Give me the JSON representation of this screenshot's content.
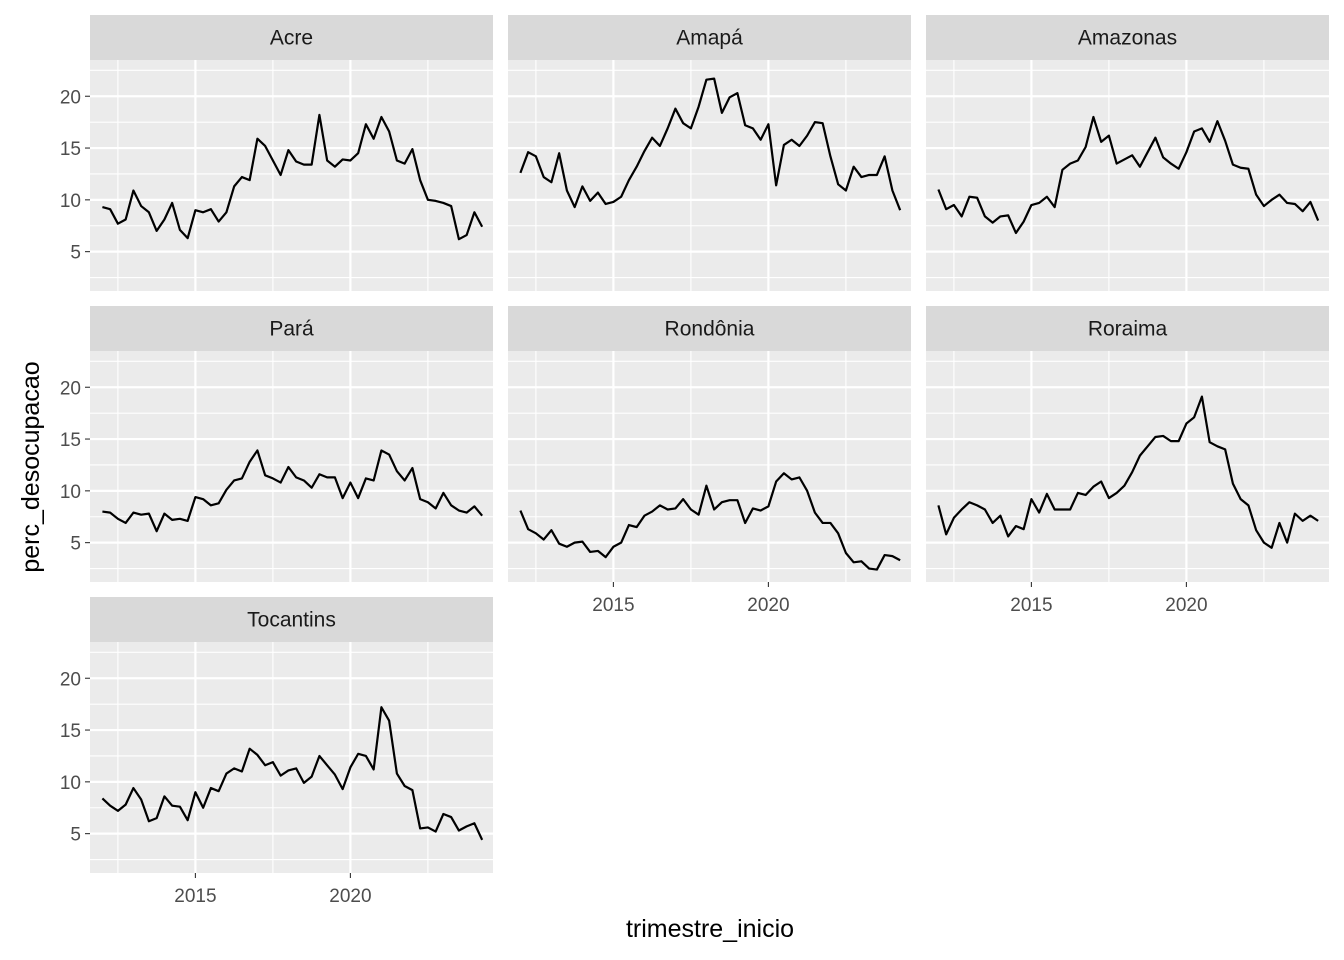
{
  "chart_data": {
    "type": "line",
    "layout": "facet_wrap",
    "xlabel": "trimestre_inicio",
    "ylabel": "perc_desocupacao",
    "x_ticks": [
      2015,
      2020
    ],
    "y_ticks": [
      5,
      10,
      15,
      20
    ],
    "xlim": [
      2011.6,
      2024.6
    ],
    "ylim": [
      1.2,
      23.5
    ],
    "x_start": 2012.0,
    "x_step": 0.25,
    "grid": true,
    "line_color": "#000000",
    "panel_background": "#EBEBEB",
    "strip_background": "#D9D9D9",
    "series": [
      {
        "name": "Acre",
        "values": [
          9.3,
          9.1,
          7.7,
          8.1,
          10.9,
          9.4,
          8.8,
          7.0,
          8.1,
          9.7,
          7.1,
          6.3,
          9.0,
          8.8,
          9.1,
          7.9,
          8.8,
          11.3,
          12.2,
          11.9,
          15.9,
          15.2,
          13.8,
          12.4,
          14.8,
          13.7,
          13.4,
          13.4,
          18.2,
          13.8,
          13.2,
          13.9,
          13.8,
          14.5,
          17.3,
          15.9,
          18.0,
          16.6,
          13.8,
          13.5,
          14.9,
          11.9,
          10.0,
          9.9,
          9.7,
          9.4,
          6.2,
          6.6,
          8.8,
          7.4
        ]
      },
      {
        "name": "Amapá",
        "values": [
          12.6,
          14.6,
          14.2,
          12.2,
          11.7,
          14.5,
          10.9,
          9.3,
          11.3,
          9.9,
          10.7,
          9.6,
          9.8,
          10.3,
          11.9,
          13.2,
          14.7,
          16.0,
          15.2,
          16.9,
          18.8,
          17.4,
          16.9,
          19.0,
          21.6,
          21.7,
          18.4,
          19.9,
          20.3,
          17.2,
          16.9,
          15.8,
          17.3,
          11.4,
          15.3,
          15.8,
          15.2,
          16.2,
          17.5,
          17.4,
          14.2,
          11.5,
          10.9,
          13.2,
          12.2,
          12.4,
          12.4,
          14.2,
          10.9,
          9.0
        ]
      },
      {
        "name": "Amazonas",
        "values": [
          11.0,
          9.1,
          9.5,
          8.4,
          10.3,
          10.2,
          8.4,
          7.8,
          8.4,
          8.5,
          6.8,
          7.9,
          9.5,
          9.7,
          10.3,
          9.3,
          12.9,
          13.5,
          13.8,
          15.1,
          18.0,
          15.6,
          16.2,
          13.5,
          13.9,
          14.3,
          13.2,
          14.6,
          16.0,
          14.1,
          13.5,
          13.0,
          14.6,
          16.6,
          16.9,
          15.6,
          17.6,
          15.7,
          13.4,
          13.1,
          13.0,
          10.5,
          9.4,
          10.0,
          10.5,
          9.7,
          9.6,
          8.9,
          9.8,
          8.0
        ]
      },
      {
        "name": "Pará",
        "values": [
          8.0,
          7.9,
          7.3,
          6.9,
          7.9,
          7.7,
          7.8,
          6.1,
          7.8,
          7.2,
          7.3,
          7.1,
          9.4,
          9.2,
          8.6,
          8.8,
          10.1,
          11.0,
          11.2,
          12.8,
          13.9,
          11.5,
          11.2,
          10.8,
          12.3,
          11.3,
          11.0,
          10.3,
          11.6,
          11.3,
          11.3,
          9.3,
          10.8,
          9.3,
          11.2,
          11.0,
          13.9,
          13.5,
          11.9,
          11.0,
          12.2,
          9.2,
          8.9,
          8.3,
          9.8,
          8.6,
          8.1,
          7.9,
          8.5,
          7.6
        ]
      },
      {
        "name": "Rondônia",
        "values": [
          8.1,
          6.3,
          5.9,
          5.3,
          6.2,
          4.9,
          4.6,
          5.0,
          5.1,
          4.1,
          4.2,
          3.6,
          4.6,
          5.0,
          6.7,
          6.5,
          7.6,
          8.0,
          8.6,
          8.2,
          8.3,
          9.2,
          8.2,
          7.7,
          10.5,
          8.2,
          8.9,
          9.1,
          9.1,
          6.9,
          8.3,
          8.1,
          8.5,
          10.9,
          11.7,
          11.1,
          11.3,
          10.0,
          7.9,
          6.9,
          6.9,
          5.9,
          4.0,
          3.1,
          3.2,
          2.5,
          2.4,
          3.8,
          3.7,
          3.3
        ]
      },
      {
        "name": "Roraima",
        "values": [
          8.6,
          5.8,
          7.4,
          8.2,
          8.9,
          8.6,
          8.2,
          6.9,
          7.6,
          5.6,
          6.6,
          6.3,
          9.2,
          7.9,
          9.7,
          8.2,
          8.2,
          8.2,
          9.8,
          9.6,
          10.4,
          10.9,
          9.3,
          9.8,
          10.5,
          11.8,
          13.4,
          14.3,
          15.2,
          15.3,
          14.8,
          14.8,
          16.5,
          17.1,
          19.1,
          14.7,
          14.3,
          14.0,
          10.7,
          9.2,
          8.6,
          6.2,
          5.0,
          4.5,
          6.9,
          5.0,
          7.8,
          7.1,
          7.6,
          7.1
        ]
      },
      {
        "name": "Tocantins",
        "values": [
          8.4,
          7.7,
          7.2,
          7.8,
          9.4,
          8.3,
          6.2,
          6.5,
          8.6,
          7.7,
          7.6,
          6.3,
          9.0,
          7.5,
          9.4,
          9.1,
          10.8,
          11.3,
          11.0,
          13.2,
          12.6,
          11.6,
          11.9,
          10.6,
          11.1,
          11.3,
          9.9,
          10.5,
          12.5,
          11.6,
          10.7,
          9.3,
          11.4,
          12.7,
          12.5,
          11.2,
          17.2,
          15.9,
          10.8,
          9.6,
          9.2,
          5.5,
          5.6,
          5.2,
          6.9,
          6.6,
          5.3,
          5.7,
          6.0,
          4.4
        ]
      }
    ]
  }
}
